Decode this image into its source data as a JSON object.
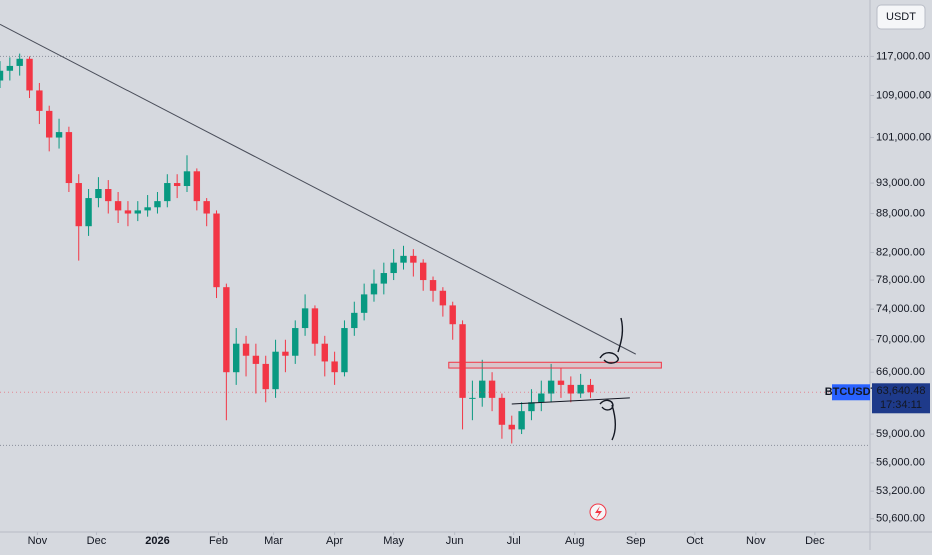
{
  "chart_data": {
    "type": "candlestick",
    "symbol": "BTCUSDT",
    "currency": "USDT",
    "last_price": {
      "value": 63640.48,
      "label": "63,640.48"
    },
    "countdown": "17:34:11",
    "log": true,
    "up_color": "#089981",
    "down_color": "#f23645",
    "xlim": [
      -19,
      423
    ],
    "ylim": [
      49400,
      129600
    ],
    "xticks": [
      {
        "value": 0,
        "label": "Nov"
      },
      {
        "value": 30,
        "label": "Dec"
      },
      {
        "value": 61,
        "label": "2026"
      },
      {
        "value": 92,
        "label": "Feb"
      },
      {
        "value": 120,
        "label": "Mar"
      },
      {
        "value": 151,
        "label": "Apr"
      },
      {
        "value": 181,
        "label": "May"
      },
      {
        "value": 212,
        "label": "Jun"
      },
      {
        "value": 242,
        "label": "Jul"
      },
      {
        "value": 273,
        "label": "Aug"
      },
      {
        "value": 304,
        "label": "Sep"
      },
      {
        "value": 334,
        "label": "Oct"
      },
      {
        "value": 365,
        "label": "Nov"
      },
      {
        "value": 395,
        "label": "Dec"
      }
    ],
    "yticks": [
      {
        "value": 117000,
        "label": "117,000.00"
      },
      {
        "value": 109000,
        "label": "109,000.00"
      },
      {
        "value": 101000,
        "label": "101,000.00"
      },
      {
        "value": 93000,
        "label": "93,000.00"
      },
      {
        "value": 88000,
        "label": "88,000.00"
      },
      {
        "value": 82000,
        "label": "82,000.00"
      },
      {
        "value": 78000,
        "label": "78,000.00"
      },
      {
        "value": 74000,
        "label": "74,000.00"
      },
      {
        "value": 70000,
        "label": "70,000.00"
      },
      {
        "value": 66000,
        "label": "66,000.00"
      },
      {
        "value": 59000,
        "label": "59,000.00"
      },
      {
        "value": 56000,
        "label": "56,000.00"
      },
      {
        "value": 53200,
        "label": "53,200.00"
      },
      {
        "value": 50600,
        "label": "50,600.00"
      }
    ],
    "hlines": [
      117000,
      57800
    ],
    "x": [
      -19,
      -14,
      -9,
      -4,
      1,
      6,
      11,
      16,
      21,
      26,
      31,
      36,
      41,
      46,
      51,
      56,
      61,
      66,
      71,
      76,
      81,
      86,
      91,
      96,
      101,
      106,
      111,
      116,
      121,
      126,
      131,
      136,
      141,
      146,
      151,
      156,
      161,
      166,
      171,
      176,
      181,
      186,
      191,
      196,
      201,
      206,
      211,
      216,
      221,
      226,
      231,
      236,
      241,
      246,
      251,
      256,
      261,
      266,
      271,
      276,
      281
    ],
    "ohlc": [
      [
        112000,
        116000,
        110500,
        114000
      ],
      [
        114000,
        116800,
        112000,
        115000
      ],
      [
        115000,
        117600,
        113000,
        116500
      ],
      [
        116500,
        117000,
        108500,
        110000
      ],
      [
        110000,
        111500,
        103500,
        106000
      ],
      [
        106000,
        107000,
        98500,
        101000
      ],
      [
        101000,
        104500,
        99000,
        102000
      ],
      [
        102000,
        103000,
        91500,
        93000
      ],
      [
        93000,
        94500,
        80800,
        86000
      ],
      [
        86000,
        92000,
        84500,
        90500
      ],
      [
        90500,
        94000,
        89000,
        92000
      ],
      [
        92000,
        93500,
        88000,
        90000
      ],
      [
        90000,
        91500,
        86500,
        88500
      ],
      [
        88500,
        90000,
        86000,
        88000
      ],
      [
        88000,
        90000,
        86800,
        88500
      ],
      [
        88500,
        91000,
        87500,
        89000
      ],
      [
        89000,
        91500,
        88000,
        90000
      ],
      [
        90000,
        94500,
        89000,
        93000
      ],
      [
        93000,
        94500,
        90500,
        92500
      ],
      [
        92500,
        97800,
        91500,
        95000
      ],
      [
        95000,
        95500,
        88500,
        90000
      ],
      [
        90000,
        90500,
        86000,
        88000
      ],
      [
        88000,
        88500,
        75500,
        77000
      ],
      [
        77000,
        77500,
        60500,
        66000
      ],
      [
        66000,
        71500,
        64500,
        69500
      ],
      [
        69500,
        70500,
        65500,
        68000
      ],
      [
        68000,
        69500,
        63500,
        67000
      ],
      [
        67000,
        68000,
        62500,
        64000
      ],
      [
        64000,
        70000,
        63000,
        68500
      ],
      [
        68500,
        70000,
        66000,
        68000
      ],
      [
        68000,
        72500,
        67000,
        71500
      ],
      [
        71500,
        76000,
        70500,
        74100
      ],
      [
        74100,
        74500,
        68000,
        69500
      ],
      [
        69500,
        70500,
        65500,
        67300
      ],
      [
        67300,
        68500,
        64500,
        66000
      ],
      [
        66000,
        72500,
        65500,
        71500
      ],
      [
        71500,
        75000,
        70500,
        73500
      ],
      [
        73500,
        77500,
        72500,
        76000
      ],
      [
        76000,
        79500,
        75000,
        77500
      ],
      [
        77500,
        80500,
        76000,
        79000
      ],
      [
        79000,
        82500,
        78000,
        80500
      ],
      [
        80500,
        83000,
        79500,
        81500
      ],
      [
        81500,
        82500,
        78500,
        80500
      ],
      [
        80500,
        81000,
        76500,
        78000
      ],
      [
        78000,
        78500,
        75000,
        76500
      ],
      [
        76500,
        77000,
        73000,
        74500
      ],
      [
        74500,
        75000,
        70000,
        72000
      ],
      [
        72000,
        72500,
        59500,
        63000
      ],
      [
        63000,
        65000,
        60500,
        63000
      ],
      [
        63000,
        67500,
        62000,
        65000
      ],
      [
        65000,
        66000,
        61500,
        63000
      ],
      [
        63000,
        63500,
        58500,
        60000
      ],
      [
        60000,
        61000,
        58000,
        59500
      ],
      [
        59500,
        62500,
        59000,
        61500
      ],
      [
        61500,
        64000,
        60500,
        62500
      ],
      [
        62500,
        65000,
        61500,
        63500
      ],
      [
        63500,
        67000,
        62500,
        65000
      ],
      [
        65000,
        66500,
        63000,
        64500
      ],
      [
        64500,
        65500,
        62500,
        63500
      ],
      [
        63500,
        65800,
        63000,
        64500
      ],
      [
        64500,
        65200,
        63000,
        63640.48
      ]
    ],
    "drawings": {
      "trendline": [
        [
          -19,
          124000
        ],
        [
          304,
          68200
        ]
      ],
      "support": [
        [
          241,
          62300
        ],
        [
          301,
          63000
        ]
      ],
      "zone": {
        "x": [
          209,
          317
        ],
        "y": [
          66500,
          67200
        ]
      }
    }
  }
}
